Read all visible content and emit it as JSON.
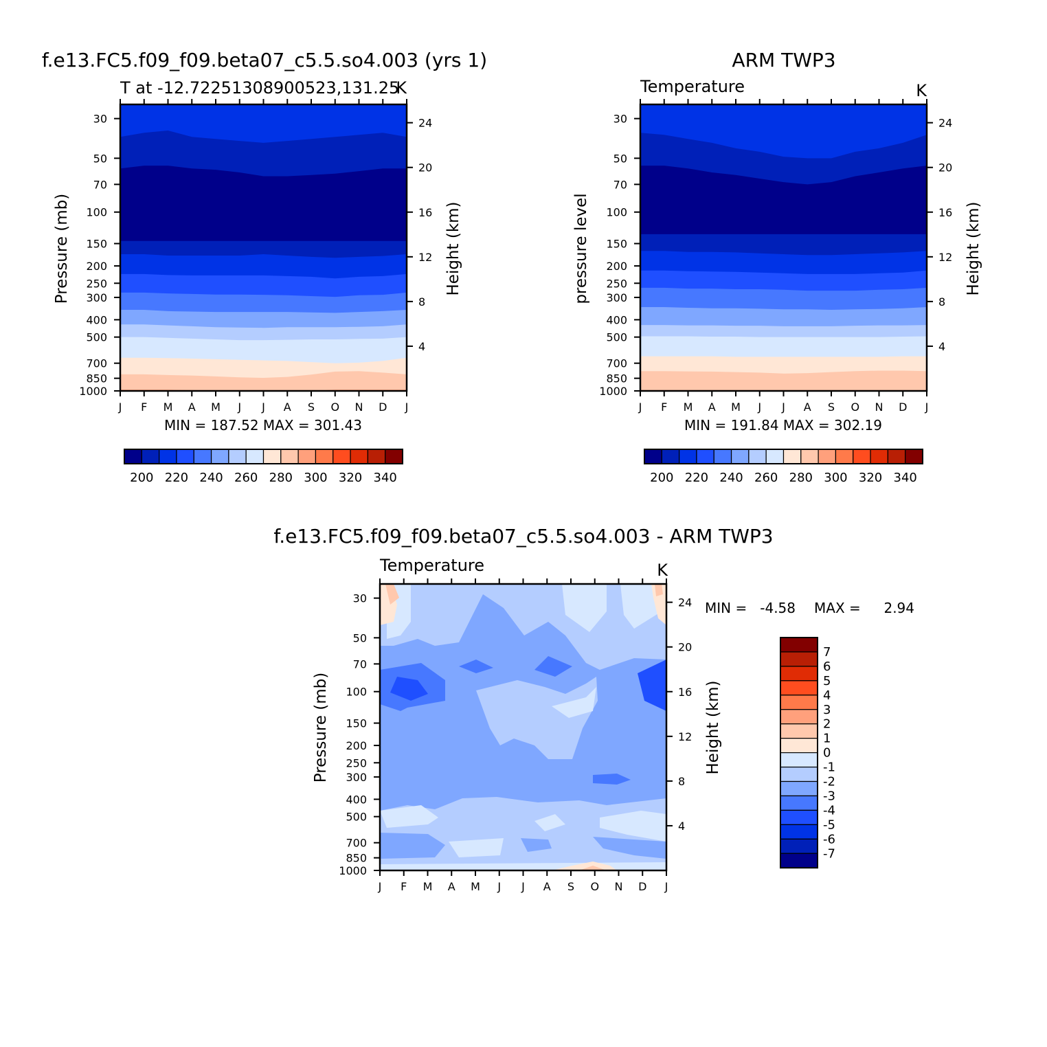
{
  "colors": {
    "temperature_palette": [
      "#00008a",
      "#0020b8",
      "#0033e6",
      "#1f4fff",
      "#4778ff",
      "#7fa7ff",
      "#b4cdff",
      "#d7e8ff",
      "#ffe7d6",
      "#ffc8ad",
      "#ffa07c",
      "#ff7a4a",
      "#ff4d1f",
      "#e02c05",
      "#b81f05",
      "#820000"
    ],
    "difference_palette": [
      "#00008a",
      "#0020b8",
      "#0033e6",
      "#1f4fff",
      "#4778ff",
      "#7fa7ff",
      "#b4cdff",
      "#d7e8ff",
      "#ffe7d6",
      "#ffc8ad",
      "#ffa07c",
      "#ff7a4a",
      "#ff4d1f",
      "#e02c05",
      "#b81f05",
      "#820000"
    ]
  },
  "panels": {
    "model": {
      "title": "f.e13.FC5.f09_f09.beta07_c5.5.so4.003 (yrs 1)",
      "left_label": "T at -12.72251308900523,131.25",
      "right_label": "K",
      "ylabel": "Pressure (mb)",
      "ylabel_right": "Height (km)",
      "stats": "MIN = 187.52 MAX = 301.43",
      "colorbar_labels": [
        "200",
        "220",
        "240",
        "260",
        "280",
        "300",
        "320",
        "340"
      ]
    },
    "obs": {
      "title": "ARM TWP3",
      "left_label": "Temperature",
      "right_label": "K",
      "ylabel": "pressure level",
      "ylabel_right": "Height (km)",
      "stats": "MIN = 191.84 MAX = 302.19",
      "colorbar_labels": [
        "200",
        "220",
        "240",
        "260",
        "280",
        "300",
        "320",
        "340"
      ]
    },
    "diff": {
      "title": "f.e13.FC5.f09_f09.beta07_c5.5.so4.003 - ARM TWP3",
      "left_label": "Temperature",
      "right_label": "K",
      "ylabel": "Pressure (mb)",
      "ylabel_right": "Height (km)",
      "stats_min_label": "MIN =",
      "stats_min_value": "-4.58",
      "stats_max_label": "MAX =",
      "stats_max_value": "2.94",
      "colorbar_labels": [
        "7",
        "6",
        "5",
        "4",
        "3",
        "2",
        "1",
        "0",
        "-1",
        "-2",
        "-3",
        "-4",
        "-5",
        "-6",
        "-7"
      ]
    }
  },
  "chart_data": [
    {
      "type": "heatmap",
      "title": "f.e13.FC5.f09_f09.beta07_c5.5.so4.003 (yrs 1)",
      "subtitle": "T at -12.72251308900523,131.25",
      "units": "K",
      "ylabel": "Pressure (mb)",
      "ylabel_right": "Height (km)",
      "x": [
        "J",
        "F",
        "M",
        "A",
        "M",
        "J",
        "J",
        "A",
        "S",
        "O",
        "N",
        "D",
        "J"
      ],
      "y_pressure_ticks": [
        30,
        50,
        70,
        100,
        150,
        200,
        250,
        300,
        400,
        500,
        700,
        850,
        1000
      ],
      "y_height_ticks": [
        24,
        20,
        16,
        12,
        8,
        4
      ],
      "y_scale": "log",
      "ylim": [
        25,
        1000
      ],
      "colorbar_levels": [
        195,
        200,
        205,
        210,
        215,
        220,
        225,
        230,
        235,
        240,
        245,
        250,
        255,
        260,
        265,
        270,
        275,
        280,
        285,
        290,
        295,
        300,
        305,
        310,
        315,
        320,
        325,
        330,
        335,
        340,
        345
      ],
      "colorbar_ticks": [
        200,
        220,
        240,
        260,
        280,
        300,
        320,
        340
      ],
      "min": 187.52,
      "max": 301.43
    },
    {
      "type": "heatmap",
      "title": "ARM TWP3",
      "subtitle": "Temperature",
      "units": "K",
      "ylabel": "pressure level",
      "ylabel_right": "Height (km)",
      "x": [
        "J",
        "F",
        "M",
        "A",
        "M",
        "J",
        "J",
        "A",
        "S",
        "O",
        "N",
        "D",
        "J"
      ],
      "y_pressure_ticks": [
        30,
        50,
        70,
        100,
        150,
        200,
        250,
        300,
        400,
        500,
        700,
        850,
        1000
      ],
      "y_height_ticks": [
        24,
        20,
        16,
        12,
        8,
        4
      ],
      "y_scale": "log",
      "ylim": [
        25,
        1000
      ],
      "colorbar_ticks": [
        200,
        220,
        240,
        260,
        280,
        300,
        320,
        340
      ],
      "min": 191.84,
      "max": 302.19
    },
    {
      "type": "heatmap",
      "title": "f.e13.FC5.f09_f09.beta07_c5.5.so4.003 - ARM TWP3",
      "subtitle": "Temperature",
      "units": "K",
      "ylabel": "Pressure (mb)",
      "ylabel_right": "Height (km)",
      "x": [
        "J",
        "F",
        "M",
        "A",
        "M",
        "J",
        "J",
        "A",
        "S",
        "O",
        "N",
        "D",
        "J"
      ],
      "y_pressure_ticks": [
        30,
        50,
        70,
        100,
        150,
        200,
        250,
        300,
        400,
        500,
        700,
        850,
        1000
      ],
      "y_height_ticks": [
        24,
        20,
        16,
        12,
        8,
        4
      ],
      "y_scale": "log",
      "ylim": [
        25,
        1000
      ],
      "colorbar_ticks": [
        7,
        6,
        5,
        4,
        3,
        2,
        1,
        0,
        -1,
        -2,
        -3,
        -4,
        -5,
        -6,
        -7
      ],
      "min": -4.58,
      "max": 2.94
    }
  ]
}
